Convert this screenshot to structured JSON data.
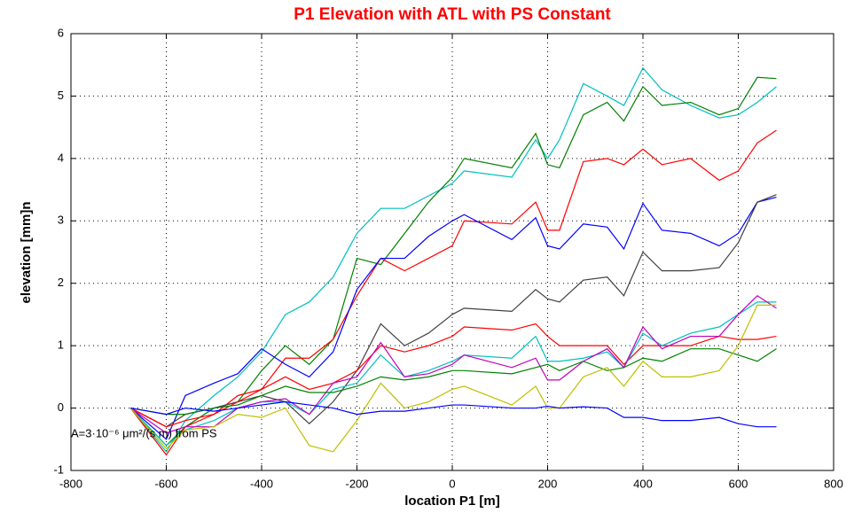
{
  "chart_data": {
    "type": "line",
    "title": "P1 Elevation with ATL with PS Constant",
    "x_label": "location P1 [m]",
    "y_label": "elevation  [mm]n",
    "annotation": "A=3·10⁻⁶ μm²/(s m) from PS",
    "xlim": [
      -800,
      800
    ],
    "xticks": [
      -800,
      -600,
      -400,
      -200,
      0,
      200,
      400,
      600,
      800
    ],
    "ylim": [
      -1,
      6
    ],
    "yticks": [
      -1,
      0,
      1,
      2,
      3,
      4,
      5,
      6
    ],
    "grid": true,
    "x": [
      -675,
      -600,
      -560,
      -500,
      -450,
      -400,
      -350,
      -300,
      -250,
      -200,
      -150,
      -100,
      -50,
      0,
      25,
      125,
      175,
      200,
      225,
      275,
      325,
      360,
      400,
      440,
      500,
      560,
      600,
      640,
      680
    ],
    "series": [
      {
        "color": "#00bfbf",
        "values": [
          0,
          -0.7,
          -0.2,
          0.2,
          0.5,
          0.9,
          1.5,
          1.7,
          2.1,
          2.8,
          3.2,
          3.2,
          3.4,
          3.6,
          3.8,
          3.7,
          4.3,
          4.0,
          4.3,
          5.2,
          5.0,
          4.85,
          5.45,
          5.1,
          4.85,
          4.65,
          4.7,
          4.9,
          5.15
        ]
      },
      {
        "color": "#008000",
        "values": [
          0,
          -0.6,
          -0.3,
          0,
          0.1,
          0.6,
          1.0,
          0.7,
          1.1,
          2.4,
          2.3,
          2.8,
          3.3,
          3.7,
          4.0,
          3.85,
          4.4,
          3.9,
          3.85,
          4.7,
          4.9,
          4.6,
          5.15,
          4.85,
          4.9,
          4.7,
          4.8,
          5.3,
          5.28
        ]
      },
      {
        "color": "#ff0000",
        "values": [
          0,
          -0.75,
          -0.3,
          -0.1,
          0.2,
          0.3,
          0.8,
          0.8,
          1.1,
          1.8,
          2.4,
          2.2,
          2.4,
          2.6,
          3.0,
          2.95,
          3.3,
          2.85,
          2.85,
          3.95,
          4.0,
          3.9,
          4.15,
          3.9,
          4.0,
          3.65,
          3.8,
          4.25,
          4.45
        ]
      },
      {
        "color": "#0000ff",
        "values": [
          0,
          -0.5,
          0.2,
          0.4,
          0.55,
          0.95,
          0.7,
          0.5,
          0.9,
          1.9,
          2.4,
          2.4,
          2.75,
          3.0,
          3.1,
          2.7,
          3.05,
          2.6,
          2.55,
          2.95,
          2.9,
          2.55,
          3.28,
          2.85,
          2.8,
          2.6,
          2.8,
          3.3,
          3.38
        ]
      },
      {
        "color": "#404040",
        "values": [
          0,
          -0.3,
          -0.1,
          0,
          0.1,
          0.2,
          0.1,
          -0.25,
          0.1,
          0.6,
          1.35,
          1.0,
          1.2,
          1.5,
          1.6,
          1.55,
          1.9,
          1.75,
          1.7,
          2.05,
          2.1,
          1.8,
          2.5,
          2.2,
          2.2,
          2.25,
          2.65,
          3.3,
          3.42
        ]
      },
      {
        "color": "#ff0000",
        "values": [
          0,
          -0.3,
          -0.2,
          -0.1,
          0.1,
          0.3,
          0.5,
          0.3,
          0.4,
          0.6,
          1.0,
          0.9,
          1.0,
          1.15,
          1.3,
          1.25,
          1.35,
          1.15,
          1.0,
          1.0,
          1.0,
          0.7,
          1.0,
          1.0,
          1.0,
          1.15,
          1.1,
          1.1,
          1.15
        ]
      },
      {
        "color": "#00bfbf",
        "values": [
          0,
          -0.6,
          -0.35,
          -0.2,
          0,
          0.1,
          0.1,
          -0.1,
          0.3,
          0.4,
          0.85,
          0.5,
          0.6,
          0.75,
          0.85,
          0.8,
          1.15,
          0.75,
          0.75,
          0.8,
          0.9,
          0.65,
          1.2,
          1.0,
          1.2,
          1.3,
          1.5,
          1.7,
          1.7
        ]
      },
      {
        "color": "#bf00bf",
        "values": [
          0,
          -0.4,
          -0.3,
          -0.3,
          0,
          0.1,
          0.15,
          -0.1,
          0.4,
          0.5,
          1.05,
          0.5,
          0.55,
          0.7,
          0.85,
          0.65,
          0.8,
          0.45,
          0.45,
          0.75,
          0.95,
          0.65,
          1.3,
          0.95,
          1.15,
          1.15,
          1.5,
          1.8,
          1.6
        ]
      },
      {
        "color": "#008000",
        "values": [
          0,
          -0.1,
          -0.1,
          0,
          0.05,
          0.2,
          0.35,
          0.25,
          0.25,
          0.35,
          0.5,
          0.45,
          0.5,
          0.6,
          0.6,
          0.55,
          0.65,
          0.7,
          0.6,
          0.75,
          0.6,
          0.65,
          0.8,
          0.75,
          0.95,
          0.95,
          0.85,
          0.75,
          0.95
        ]
      },
      {
        "color": "#bfbf00",
        "values": [
          0,
          -0.65,
          -0.35,
          -0.3,
          -0.1,
          -0.15,
          0,
          -0.6,
          -0.7,
          -0.2,
          0.4,
          0,
          0.1,
          0.3,
          0.35,
          0.05,
          0.35,
          0,
          0,
          0.5,
          0.65,
          0.35,
          0.75,
          0.5,
          0.5,
          0.6,
          1.0,
          1.65,
          1.65
        ]
      },
      {
        "color": "#0000ff",
        "values": [
          0,
          -0.1,
          0,
          -0.05,
          0,
          0.05,
          0.1,
          0.05,
          0,
          -0.1,
          -0.05,
          -0.05,
          0,
          0.05,
          0.05,
          0,
          0,
          0.03,
          0,
          0.02,
          0,
          -0.15,
          -0.15,
          -0.2,
          -0.2,
          -0.15,
          -0.25,
          -0.3,
          -0.3
        ]
      }
    ]
  }
}
